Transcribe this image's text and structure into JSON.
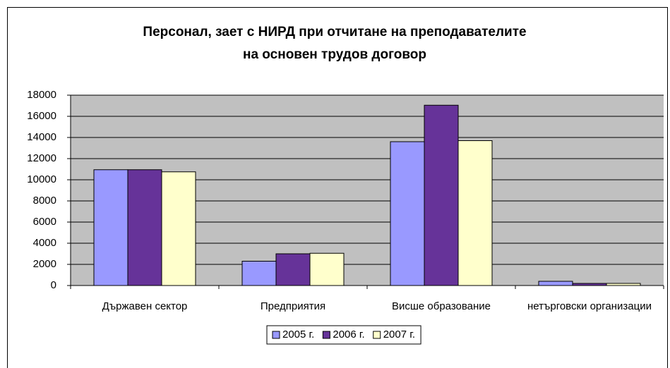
{
  "chart_data": {
    "type": "bar",
    "title": [
      "Персонал, зает с НИРД при отчитане на преподавателите",
      "на основен трудов договор"
    ],
    "categories": [
      "Държавен сектор",
      "Предприятия",
      "Висше образование",
      "нетърговски организации"
    ],
    "series": [
      {
        "name": "2005 г.",
        "color": "#9999ff",
        "values": [
          10950,
          2300,
          13600,
          400
        ]
      },
      {
        "name": "2006 г.",
        "color": "#663399",
        "values": [
          10950,
          3000,
          17050,
          200
        ]
      },
      {
        "name": "2007 г.",
        "color": "#ffffcc",
        "values": [
          10750,
          3050,
          13700,
          200
        ]
      }
    ],
    "ylim": [
      0,
      18000
    ],
    "yticks": [
      0,
      2000,
      4000,
      6000,
      8000,
      10000,
      12000,
      14000,
      16000,
      18000
    ],
    "grid": true,
    "legend": "bottom",
    "plot_background": "#c0c0c0"
  }
}
